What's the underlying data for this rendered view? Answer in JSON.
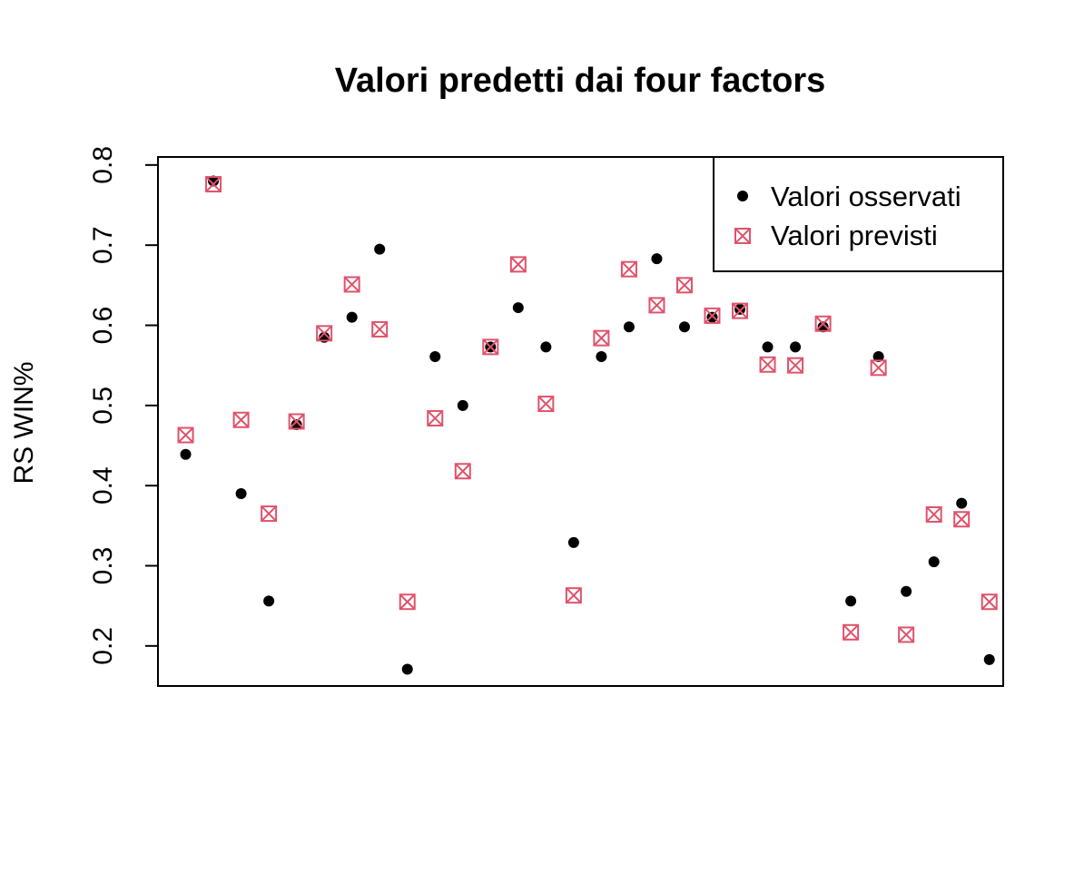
{
  "chart_data": {
    "type": "scatter",
    "title": "Valori predetti dai four factors",
    "xlabel": "",
    "ylabel": "RS WIN%",
    "ylim": [
      0.15,
      0.81
    ],
    "xlim": [
      0,
      30.5
    ],
    "yticks": [
      0.2,
      0.3,
      0.4,
      0.5,
      0.6,
      0.7,
      0.8
    ],
    "ytick_labels": [
      "0.2",
      "0.3",
      "0.4",
      "0.5",
      "0.6",
      "0.7",
      "0.8"
    ],
    "show_x_axis": false,
    "grid": false,
    "legend_position": "top-right",
    "x": [
      1,
      2,
      3,
      4,
      5,
      6,
      7,
      8,
      9,
      10,
      11,
      12,
      13,
      14,
      15,
      16,
      17,
      18,
      19,
      20,
      21,
      22,
      23,
      24,
      25,
      26,
      27,
      28,
      29,
      30
    ],
    "series": [
      {
        "name": "Valori osservati",
        "marker": "filled-circle",
        "color": "#000000",
        "values": [
          0.439,
          0.78,
          0.39,
          0.256,
          0.476,
          0.585,
          0.61,
          0.695,
          0.171,
          0.561,
          0.5,
          0.573,
          0.622,
          0.573,
          0.329,
          0.561,
          0.598,
          0.683,
          0.598,
          0.61,
          0.62,
          0.573,
          0.573,
          0.598,
          0.256,
          0.561,
          0.268,
          0.305,
          0.378,
          0.183
        ]
      },
      {
        "name": "Valori previsti",
        "marker": "boxed-cross",
        "color": "#DF536B",
        "values": [
          0.463,
          0.776,
          0.482,
          0.365,
          0.48,
          0.59,
          0.651,
          0.595,
          0.255,
          0.484,
          0.418,
          0.573,
          0.676,
          0.502,
          0.263,
          0.584,
          0.67,
          0.625,
          0.65,
          0.612,
          0.618,
          0.551,
          0.55,
          0.602,
          0.217,
          0.547,
          0.214,
          0.364,
          0.358,
          0.255
        ]
      }
    ]
  }
}
